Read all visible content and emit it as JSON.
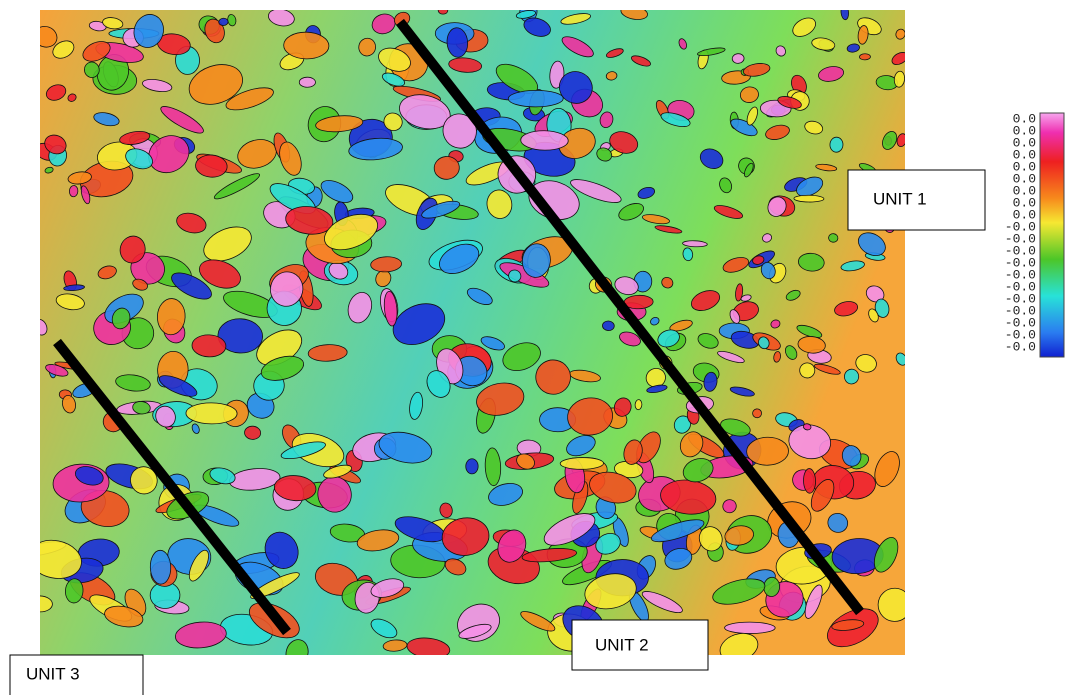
{
  "annotations": [
    "UNIT 1",
    "UNIT 2",
    "UNIT 3"
  ],
  "color_scale": {
    "labels": [
      "0.0",
      "0.0",
      "0.0",
      "0.0",
      "0.0",
      "0.0",
      "0.0",
      "0.0",
      "0.0",
      "-0.0",
      "-0.0",
      "-0.0",
      "-0.0",
      "-0.0",
      "-0.0",
      "-0.0",
      "-0.0",
      "-0.0",
      "-0.0",
      "-0.0"
    ]
  }
}
